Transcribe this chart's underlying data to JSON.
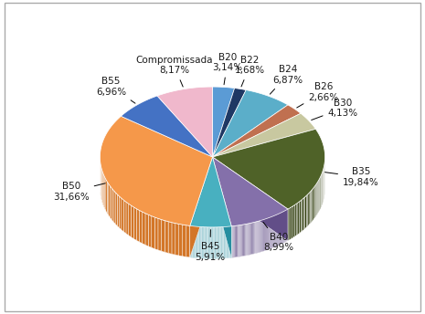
{
  "labels": [
    "B20",
    "B22",
    "B24",
    "B26",
    "B30",
    "B35",
    "B40",
    "B45",
    "B50",
    "B55",
    "Compromissada"
  ],
  "values": [
    3.14,
    1.68,
    6.87,
    2.66,
    4.13,
    19.84,
    8.99,
    5.91,
    31.66,
    6.96,
    8.17
  ],
  "colors": [
    "#5b9bd5",
    "#1f3864",
    "#5baec9",
    "#c07050",
    "#c8c8a0",
    "#4f6228",
    "#8470aa",
    "#48b0c0",
    "#f5984a",
    "#4472c4",
    "#f0b8cc"
  ],
  "dark_colors": [
    "#3a79b3",
    "#111f42",
    "#3a8ca7",
    "#9e5030",
    "#a6a680",
    "#334010",
    "#624e88",
    "#268ea0",
    "#d37628",
    "#2250a2",
    "#ce96aa"
  ],
  "startangle": 90,
  "depth": 18,
  "background_color": "#ffffff",
  "label_fontsize": 7.5,
  "label_color": "#1a1a1a",
  "border_color": "#aaaaaa"
}
